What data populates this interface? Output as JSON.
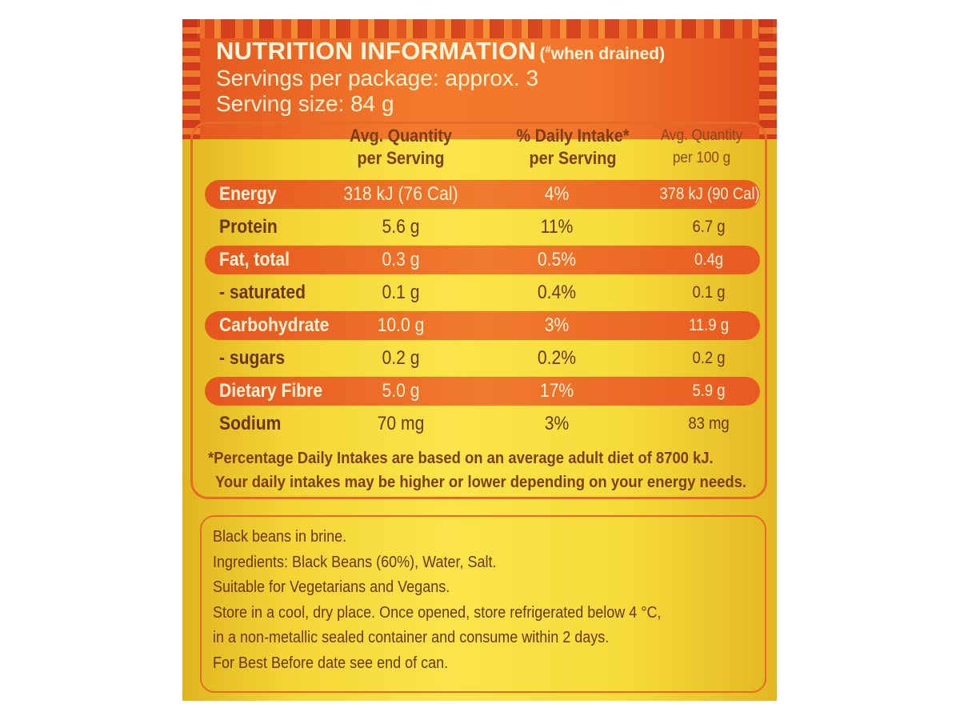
{
  "panel": {
    "title": "NUTRITION INFORMATION",
    "title_note": "(# when drained)",
    "servings_per_package": "Servings per package: approx. 3",
    "serving_size": "Serving size: 84 g"
  },
  "table": {
    "headers": {
      "per_serving": [
        "Avg. Quantity",
        "per Serving"
      ],
      "daily_intake": [
        "% Daily Intake*",
        "per Serving"
      ],
      "per_100g": [
        "Avg. Quantity",
        "per 100 g"
      ]
    },
    "rows": [
      {
        "name": "Energy",
        "per_serving": "318 kJ (76 Cal)",
        "daily_intake": "4%",
        "per_100g": "378 kJ (90 Cal)"
      },
      {
        "name": "Protein",
        "per_serving": "5.6 g",
        "daily_intake": "11%",
        "per_100g": "6.7 g"
      },
      {
        "name": "Fat, total",
        "per_serving": "0.3 g",
        "daily_intake": "0.5%",
        "per_100g": "0.4g"
      },
      {
        "name": "- saturated",
        "per_serving": "0.1 g",
        "daily_intake": "0.4%",
        "per_100g": "0.1 g"
      },
      {
        "name": "Carbohydrate",
        "per_serving": "10.0 g",
        "daily_intake": "3%",
        "per_100g": "11.9 g"
      },
      {
        "name": "- sugars",
        "per_serving": "0.2 g",
        "daily_intake": "0.2%",
        "per_100g": "0.2 g"
      },
      {
        "name": "Dietary Fibre",
        "per_serving": "5.0 g",
        "daily_intake": "17%",
        "per_100g": "5.9 g"
      },
      {
        "name": "Sodium",
        "per_serving": "70 mg",
        "daily_intake": "3%",
        "per_100g": "83 mg"
      }
    ]
  },
  "footnote": [
    "*Percentage Daily Intakes are based on an average adult diet of 8700 kJ.",
    "Your daily intakes may be higher or lower depending on your energy needs."
  ],
  "info": {
    "description": "Black beans in brine.",
    "ingredients": "Ingredients: Black Beans (60%), Water, Salt.",
    "suitability": "Suitable for Vegetarians and Vegans.",
    "storage_1": "Store in a cool, dry place. Once opened, store refrigerated below 4 °C,",
    "storage_2": "in a non-metallic sealed container and consume within 2 days.",
    "best_before": "For Best Before date see end of can."
  },
  "colors": {
    "header_orange": "#f37a2c",
    "label_yellow": "#fbe54a",
    "text_brown": "#6b3616"
  }
}
